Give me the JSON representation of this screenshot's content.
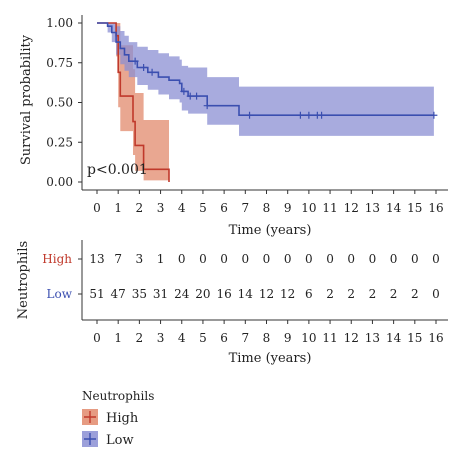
{
  "chart_data": {
    "type": "line",
    "subtype": "kaplan-meier",
    "xlabel": "Time (years)",
    "ylabel": "Survival probability",
    "xlim": [
      0,
      16
    ],
    "ylim": [
      0,
      1
    ],
    "xticks": [
      "0",
      "1",
      "2",
      "3",
      "4",
      "5",
      "6",
      "7",
      "8",
      "9",
      "10",
      "11",
      "12",
      "13",
      "14",
      "15",
      "16"
    ],
    "yticks": [
      "0.00",
      "0.25",
      "0.50",
      "0.75",
      "1.00"
    ],
    "grid": false,
    "annotation": "p<0.001",
    "series": [
      {
        "name": "High",
        "color": "#c0392b",
        "fill": "#e28a6c",
        "steps": [
          [
            0,
            1.0
          ],
          [
            0.9,
            0.92
          ],
          [
            1.0,
            0.69
          ],
          [
            1.1,
            0.54
          ],
          [
            1.7,
            0.38
          ],
          [
            1.8,
            0.23
          ],
          [
            2.2,
            0.08
          ],
          [
            3.4,
            0.0
          ]
        ],
        "ci_upper": [
          [
            0,
            1.0
          ],
          [
            0.9,
            1.0
          ],
          [
            1.0,
            1.0
          ],
          [
            1.1,
            0.86
          ],
          [
            1.7,
            0.71
          ],
          [
            1.8,
            0.56
          ],
          [
            2.2,
            0.39
          ],
          [
            3.4,
            0.39
          ]
        ],
        "ci_lower": [
          [
            0,
            1.0
          ],
          [
            0.9,
            0.79
          ],
          [
            1.0,
            0.47
          ],
          [
            1.1,
            0.32
          ],
          [
            1.7,
            0.17
          ],
          [
            1.8,
            0.07
          ],
          [
            2.2,
            0.01
          ],
          [
            3.4,
            0.01
          ]
        ],
        "censor_times": []
      },
      {
        "name": "Low",
        "color": "#3b4fb0",
        "fill": "#8b8fd3",
        "steps": [
          [
            0,
            1.0
          ],
          [
            0.5,
            0.98
          ],
          [
            0.7,
            0.94
          ],
          [
            0.9,
            0.88
          ],
          [
            1.1,
            0.84
          ],
          [
            1.3,
            0.8
          ],
          [
            1.5,
            0.76
          ],
          [
            1.9,
            0.72
          ],
          [
            2.4,
            0.69
          ],
          [
            2.9,
            0.66
          ],
          [
            3.4,
            0.64
          ],
          [
            3.9,
            0.62
          ],
          [
            4.0,
            0.57
          ],
          [
            4.3,
            0.54
          ],
          [
            5.2,
            0.48
          ],
          [
            6.7,
            0.42
          ],
          [
            15.9,
            0.42
          ]
        ],
        "ci_upper": [
          [
            0,
            1.0
          ],
          [
            0.5,
            1.0
          ],
          [
            0.7,
            1.0
          ],
          [
            0.9,
            0.98
          ],
          [
            1.1,
            0.95
          ],
          [
            1.3,
            0.92
          ],
          [
            1.5,
            0.88
          ],
          [
            1.9,
            0.85
          ],
          [
            2.4,
            0.83
          ],
          [
            2.9,
            0.81
          ],
          [
            3.4,
            0.79
          ],
          [
            3.9,
            0.77
          ],
          [
            4.0,
            0.73
          ],
          [
            4.3,
            0.72
          ],
          [
            5.2,
            0.66
          ],
          [
            6.7,
            0.6
          ],
          [
            15.9,
            0.6
          ]
        ],
        "ci_lower": [
          [
            0,
            1.0
          ],
          [
            0.5,
            0.94
          ],
          [
            0.7,
            0.88
          ],
          [
            0.9,
            0.8
          ],
          [
            1.1,
            0.74
          ],
          [
            1.3,
            0.7
          ],
          [
            1.5,
            0.66
          ],
          [
            1.9,
            0.61
          ],
          [
            2.4,
            0.58
          ],
          [
            2.9,
            0.55
          ],
          [
            3.4,
            0.52
          ],
          [
            3.9,
            0.5
          ],
          [
            4.0,
            0.45
          ],
          [
            4.3,
            0.43
          ],
          [
            5.2,
            0.36
          ],
          [
            6.7,
            0.29
          ],
          [
            15.9,
            0.29
          ]
        ],
        "censor_times": [
          1.8,
          2.2,
          2.6,
          4.1,
          4.4,
          4.7,
          5.2,
          7.2,
          9.6,
          10.0,
          10.4,
          10.6,
          15.9
        ]
      }
    ],
    "risk_table": {
      "title": "Neutrophils",
      "xlabel": "Time (years)",
      "rows": [
        {
          "name": "High",
          "color": "#c0392b",
          "counts": [
            "13",
            "7",
            "3",
            "1",
            "0",
            "0",
            "0",
            "0",
            "0",
            "0",
            "0",
            "0",
            "0",
            "0",
            "0",
            "0",
            "0"
          ]
        },
        {
          "name": "Low",
          "color": "#3b4fb0",
          "counts": [
            "51",
            "47",
            "35",
            "31",
            "24",
            "20",
            "16",
            "14",
            "12",
            "12",
            "6",
            "2",
            "2",
            "2",
            "2",
            "2",
            "0"
          ]
        }
      ]
    },
    "legend": {
      "title": "Neutrophils",
      "placement": "bottom-left",
      "items": [
        {
          "label": "High",
          "color": "#c0392b",
          "fill": "#e28a6c"
        },
        {
          "label": "Low",
          "color": "#3b4fb0",
          "fill": "#8b8fd3"
        }
      ]
    }
  }
}
